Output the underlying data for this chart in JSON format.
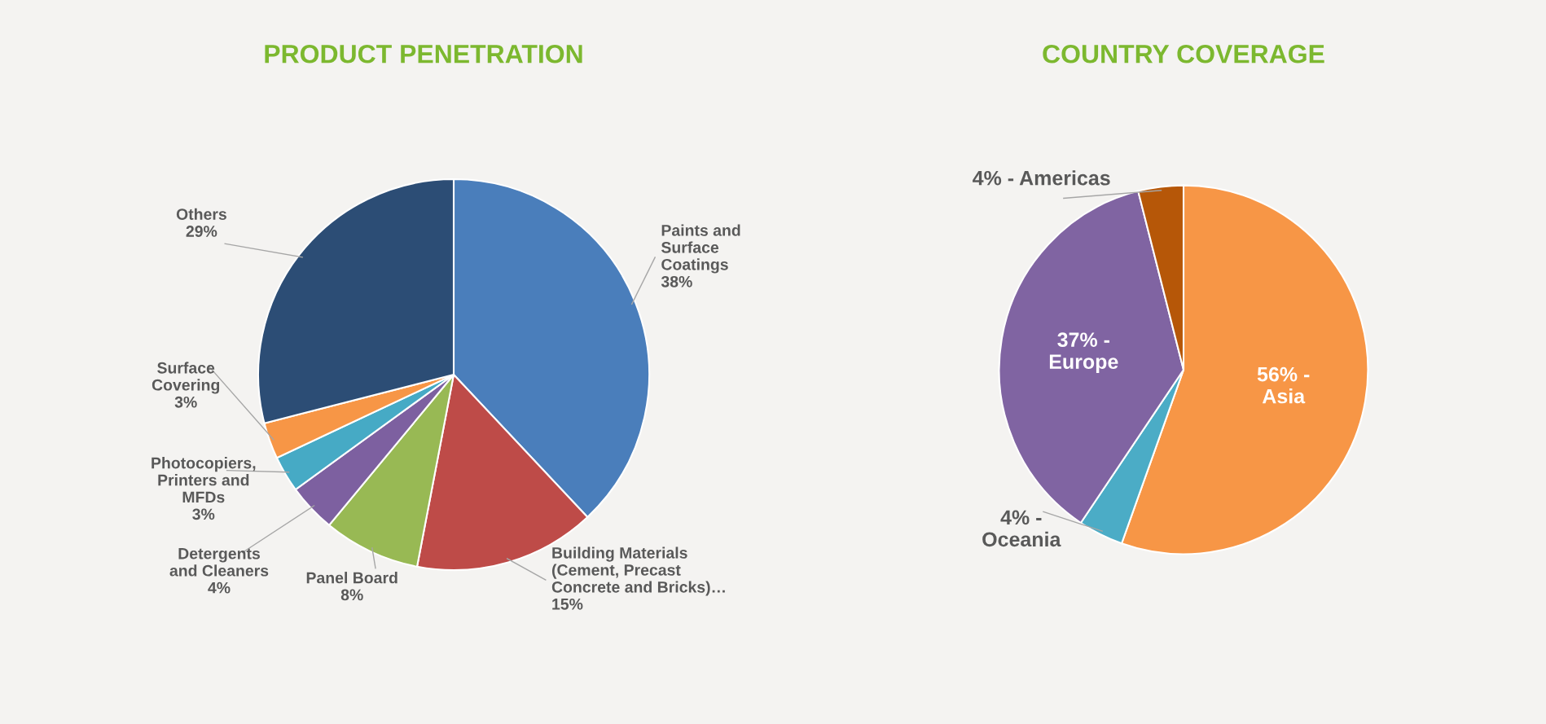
{
  "chart_data": [
    {
      "type": "pie",
      "title": "PRODUCT PENETRATION",
      "categories": [
        "Paints and\nSurface\nCoatings",
        "Building Materials\n(Cement, Precast\nConcrete and Bricks)…",
        "Panel Board",
        "Detergents\nand Cleaners",
        "Photocopiers,\nPrinters and\nMFDs",
        "Surface\nCovering",
        "Others"
      ],
      "values": [
        38,
        15,
        8,
        4,
        3,
        3,
        29
      ],
      "value_labels": [
        "38%",
        "15%",
        "8%",
        "4%",
        "3%",
        "3%",
        "29%"
      ],
      "colors": [
        "#4a7ebb",
        "#be4b48",
        "#98b954",
        "#7d60a0",
        "#46aac5",
        "#f79646",
        "#2c4d75"
      ]
    },
    {
      "type": "pie",
      "title": "COUNTRY COVERAGE",
      "categories": [
        "Asia",
        "Oceania",
        "Europe",
        "Americas"
      ],
      "values": [
        56,
        4,
        37,
        4
      ],
      "value_labels": [
        "56% -",
        "4% -",
        "37% -",
        "4% -"
      ],
      "colors": [
        "#f79646",
        "#4bacc6",
        "#8064a2",
        "#b65708"
      ]
    }
  ]
}
